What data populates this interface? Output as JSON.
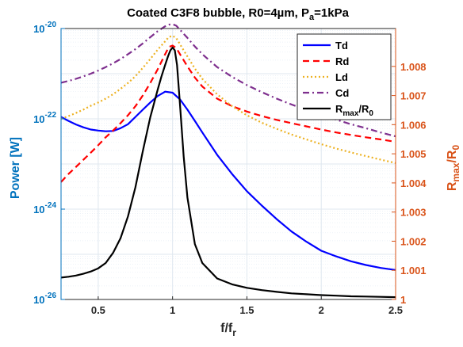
{
  "chart_data": {
    "type": "line",
    "title": "Coated C3F8 bubble, R0=4µm, P",
    "title_sub": "a",
    "title_tail": "=1kPa",
    "xlabel": "f/f",
    "xlabel_sub": "r",
    "ylabel_left": "Power [W]",
    "ylabel_right": "R",
    "ylabel_right_sub1": "max",
    "ylabel_right_mid": "/R",
    "ylabel_right_sub2": "0",
    "xlim": [
      0.25,
      2.5
    ],
    "ylim_left": [
      1e-26,
      1e-20
    ],
    "yscale_left": "log",
    "ylim_right": [
      1.0,
      1.0093
    ],
    "xticks": [
      "0.5",
      "1",
      "1.5",
      "2",
      "2.5"
    ],
    "yticks_left": [
      {
        "base": "10",
        "exp": "-26"
      },
      {
        "base": "10",
        "exp": "-24"
      },
      {
        "base": "10",
        "exp": "-22"
      },
      {
        "base": "10",
        "exp": "-20"
      }
    ],
    "yticks_right": [
      "1",
      "1.001",
      "1.002",
      "1.003",
      "1.004",
      "1.005",
      "1.006",
      "1.007",
      "1.008"
    ],
    "grid": true,
    "legend_position": "top-right",
    "series": [
      {
        "name": "Td",
        "axis": "left",
        "color": "#0000FF",
        "dash": "solid",
        "x": [
          0.25,
          0.3,
          0.35,
          0.4,
          0.45,
          0.5,
          0.55,
          0.6,
          0.65,
          0.7,
          0.75,
          0.8,
          0.85,
          0.9,
          0.95,
          1.0,
          1.05,
          1.1,
          1.15,
          1.2,
          1.3,
          1.4,
          1.5,
          1.6,
          1.7,
          1.8,
          1.9,
          2.0,
          2.1,
          2.2,
          2.3,
          2.4,
          2.5
        ],
        "y": [
          1.1e-22,
          9e-23,
          7.5e-23,
          6.5e-23,
          5.8e-23,
          5.5e-23,
          5.3e-23,
          5.4e-23,
          6.2e-23,
          7.6e-23,
          1.1e-22,
          1.6e-22,
          2.3e-22,
          3.2e-22,
          4e-22,
          3.8e-22,
          2.7e-22,
          1.6e-22,
          9e-23,
          5e-23,
          1.6e-23,
          6e-24,
          2.5e-24,
          1.2e-24,
          6e-25,
          3.2e-25,
          1.9e-25,
          1.2e-25,
          9e-26,
          7e-26,
          5.8e-26,
          5e-26,
          4.5e-26
        ]
      },
      {
        "name": "Rd",
        "axis": "left",
        "color": "#FF0000",
        "dash": "dashed",
        "x": [
          0.25,
          0.3,
          0.35,
          0.4,
          0.45,
          0.5,
          0.55,
          0.6,
          0.65,
          0.7,
          0.75,
          0.8,
          0.85,
          0.9,
          0.95,
          0.975,
          1.0,
          1.025,
          1.05,
          1.1,
          1.15,
          1.2,
          1.3,
          1.4,
          1.5,
          1.6,
          1.7,
          1.8,
          1.9,
          2.0,
          2.1,
          2.2,
          2.3,
          2.4,
          2.5
        ],
        "y": [
          4e-24,
          6e-24,
          8.6e-24,
          1.24e-23,
          1.78e-23,
          2.6e-23,
          3.9e-23,
          5.5e-23,
          8e-23,
          1.2e-22,
          1.9e-22,
          3.3e-22,
          6.2e-22,
          1.25e-21,
          2.7e-21,
          3.9e-21,
          4.2e-21,
          3.7e-21,
          2.7e-21,
          1.45e-21,
          8.2e-22,
          5.2e-22,
          2.8e-22,
          1.9e-22,
          1.45e-22,
          1.15e-22,
          9.5e-23,
          8e-23,
          6.8e-23,
          5.8e-23,
          5e-23,
          4.4e-23,
          3.9e-23,
          3.5e-23,
          3.1e-23
        ]
      },
      {
        "name": "Ld",
        "axis": "left",
        "color": "#EDB120",
        "dash": "dotted",
        "x": [
          0.25,
          0.3,
          0.35,
          0.4,
          0.45,
          0.5,
          0.55,
          0.6,
          0.65,
          0.7,
          0.75,
          0.8,
          0.85,
          0.9,
          0.95,
          0.975,
          1.0,
          1.025,
          1.05,
          1.1,
          1.15,
          1.2,
          1.3,
          1.4,
          1.5,
          1.6,
          1.7,
          1.8,
          1.9,
          2.0,
          2.1,
          2.2,
          2.3,
          2.4,
          2.5
        ],
        "y": [
          1e-22,
          1.15e-22,
          1.35e-22,
          1.6e-22,
          1.95e-22,
          2.3e-22,
          2.8e-22,
          3.5e-22,
          4.6e-22,
          6.2e-22,
          8.8e-22,
          1.35e-21,
          2.1e-21,
          3.4e-21,
          5.2e-21,
          6.5e-21,
          6.9e-21,
          6.1e-21,
          4.5e-21,
          2.4e-21,
          1.3e-21,
          7.7e-22,
          3.5e-22,
          1.9e-22,
          1.2e-22,
          8.2e-23,
          6e-23,
          4.5e-23,
          3.5e-23,
          2.75e-23,
          2.2e-23,
          1.8e-23,
          1.5e-23,
          1.25e-23,
          1.05e-23
        ]
      },
      {
        "name": "Cd",
        "axis": "left",
        "color": "#7E2F8E",
        "dash": "dashdot",
        "x": [
          0.25,
          0.3,
          0.35,
          0.4,
          0.45,
          0.5,
          0.55,
          0.6,
          0.65,
          0.7,
          0.75,
          0.8,
          0.85,
          0.9,
          0.95,
          0.975,
          1.0,
          1.025,
          1.05,
          1.1,
          1.15,
          1.2,
          1.3,
          1.4,
          1.5,
          1.6,
          1.7,
          1.8,
          1.9,
          2.0,
          2.1,
          2.2,
          2.3,
          2.4,
          2.5
        ],
        "y": [
          6.3e-22,
          6.9e-22,
          7.7e-22,
          8.7e-22,
          1e-21,
          1.17e-21,
          1.4e-21,
          1.7e-21,
          2.1e-21,
          2.7e-21,
          3.5e-21,
          4.7e-21,
          6.4e-21,
          8.7e-21,
          1.12e-20,
          1.22e-20,
          1.25e-20,
          1.15e-20,
          9.4e-21,
          6.2e-21,
          4e-21,
          2.7e-21,
          1.4e-21,
          8.5e-22,
          5.6e-22,
          3.9e-22,
          2.8e-22,
          2.08e-22,
          1.58e-22,
          1.22e-22,
          9.6e-23,
          7.6e-23,
          6.2e-23,
          5e-23,
          4.1e-23
        ]
      },
      {
        "name": "R",
        "name_sub1": "max",
        "name_mid": "/R",
        "name_sub2": "0",
        "axis": "right",
        "color": "#000000",
        "dash": "solid",
        "x": [
          0.25,
          0.3,
          0.35,
          0.4,
          0.45,
          0.5,
          0.55,
          0.6,
          0.65,
          0.7,
          0.75,
          0.8,
          0.85,
          0.9,
          0.925,
          0.95,
          0.97,
          0.985,
          1.0,
          1.015,
          1.03,
          1.05,
          1.075,
          1.1,
          1.15,
          1.2,
          1.3,
          1.4,
          1.5,
          1.6,
          1.7,
          1.8,
          1.9,
          2.0,
          2.1,
          2.2,
          2.3,
          2.4,
          2.5
        ],
        "y": [
          1.00075,
          1.00078,
          1.00082,
          1.00088,
          1.00096,
          1.00107,
          1.00125,
          1.0016,
          1.0021,
          1.00285,
          1.00385,
          1.0051,
          1.00625,
          1.0072,
          1.00765,
          1.00805,
          1.00835,
          1.00855,
          1.00865,
          1.00855,
          1.00805,
          1.0067,
          1.0049,
          1.0035,
          1.0019,
          1.00125,
          1.00072,
          1.00052,
          1.0004,
          1.00032,
          1.00026,
          1.00021,
          1.00018,
          1.00015,
          1.00013,
          1.00011,
          1.0001,
          1.00009,
          1.00008
        ]
      }
    ]
  }
}
